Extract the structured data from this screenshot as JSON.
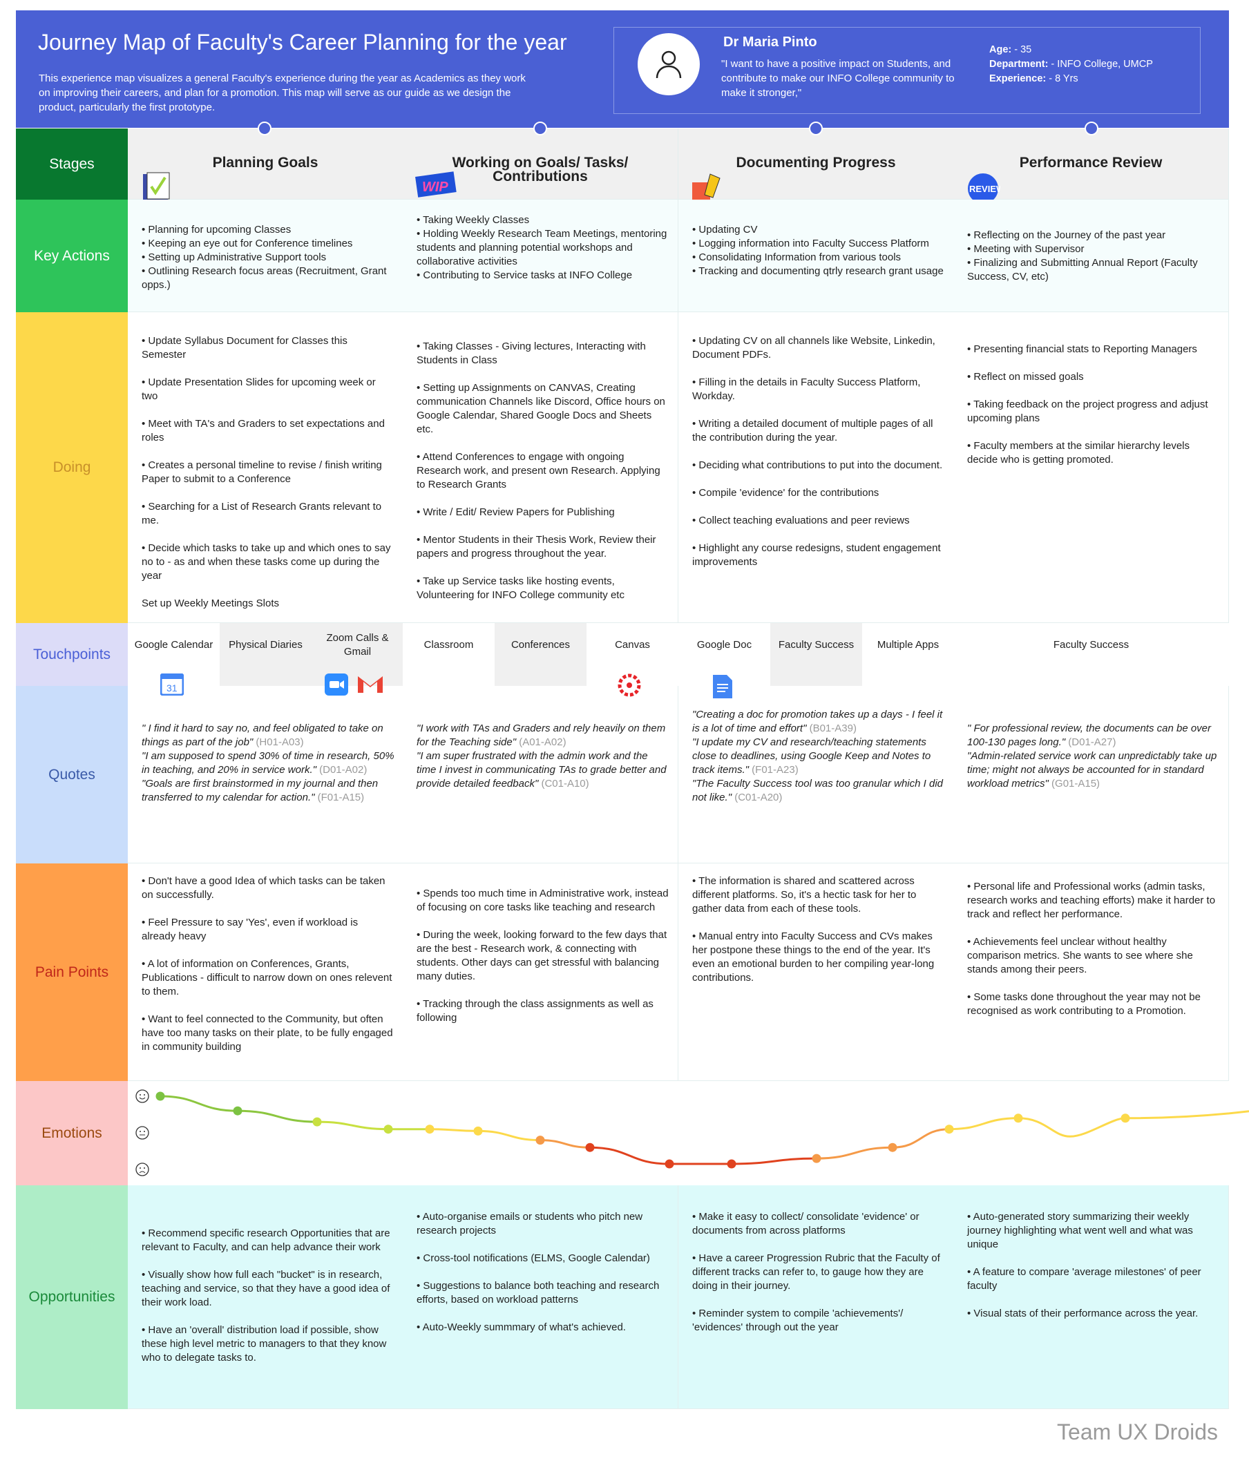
{
  "header": {
    "title": "Journey Map of Faculty's Career Planning for the year",
    "description": "This experience map visualizes a general Faculty's experience during the year as Academics as they work on improving their careers, and plan for a promotion. This map will serve as our guide as we design the product, particularly the first prototype.",
    "persona": {
      "name": "Dr Maria Pinto",
      "quote": "\"I want to have a positive impact on Students, and contribute to make our INFO College community to make it stronger,\"",
      "age_label": "Age:",
      "age": " - 35",
      "department_label": "Department:",
      "department": " - INFO College, UMCP",
      "experience_label": "Experience:",
      "experience": " - 8 Yrs"
    }
  },
  "row_labels": {
    "stages": "Stages",
    "key_actions": "Key Actions",
    "doing": "Doing",
    "touchpoints": "Touchpoints",
    "quotes": "Quotes",
    "pain_points": "Pain Points",
    "emotions": "Emotions",
    "opportunities": "Opportunities"
  },
  "colors": {
    "header": "#4a60d4",
    "stages": "#08782f",
    "key_actions": "#2ec45a",
    "doing": "#fdd84a",
    "touchpoints": "#dcdcf8",
    "quotes": "#c9ddfb",
    "pain_points": "#ff9f4a",
    "emotions": "#fcc7c7",
    "opportunities": "#aeedc7"
  },
  "stages": [
    {
      "title": "Planning Goals",
      "icon": "planned-notepad-icon",
      "icon_text": "PLANNED",
      "key_actions": [
        "• Planning for upcoming Classes",
        "• Keeping an eye out for Conference timelines",
        "• Setting up Administrative Support tools",
        "• Outlining Research focus areas (Recruitment, Grant opps.)"
      ],
      "doing": [
        "• Update Syllabus Document  for Classes this Semester",
        "• Update Presentation Slides for upcoming week or two",
        "• Meet with TA's and Graders to set expectations and roles",
        "• Creates a personal timeline to revise / finish writing Paper to submit to a Conference",
        "• Searching for a List of Research Grants relevant to me.",
        "• Decide which tasks to take up and which ones to say no to - as and when these tasks come up during the year",
        "Set up Weekly Meetings Slots"
      ],
      "touchpoints": [
        "Google Calendar",
        "Physical Diaries",
        "Zoom Calls & Gmail"
      ],
      "quotes": [
        {
          "text": "\" I find it hard to say no, and feel obligated to take on things as part of the job\"",
          "code": " (H01-A03)"
        },
        {
          "text": "\"I am supposed to spend 30% of time in research, 50% in teaching, and 20% in service work.\"",
          "code": "  (D01-A02)"
        },
        {
          "text": "\"Goals are first brainstormed in my journal and then transferred to my calendar for action.\"",
          "code": " (F01-A15)"
        }
      ],
      "pain_points": [
        "• Don't have a good Idea of which tasks can be taken on successfully.",
        "• Feel Pressure to say 'Yes', even if workload is already heavy",
        "• A lot of information on Conferences, Grants, Publications - difficult to narrow down on ones relevent to them.",
        "• Want to feel connected to the Community, but often have too many tasks on their plate, to be fully engaged in community building"
      ],
      "opportunities": [
        "• Recommend specific research Opportunities that are relevant to Faculty, and can help advance their work",
        "• Visually show how full each \"bucket\" is in research, teaching and service, so that they have a good idea of their work load.",
        "• Have an 'overall' distribution load if possible, show these high level metric to managers to that they know who to delegate tasks to."
      ]
    },
    {
      "title": "Working on Goals/ Tasks/ Contributions",
      "icon": "wip-icon",
      "icon_text": "WIP",
      "key_actions": [
        "• Taking Weekly Classes",
        "•  Holding Weekly Research Team Meetings, mentoring",
        "students and planning potential workshops and collaborative activities",
        "• Contributing to Service tasks at INFO College"
      ],
      "doing": [
        "• Taking Classes - Giving lectures, Interacting with Students in Class",
        "• Setting up Assignments on CANVAS, Creating communication Channels like Discord,  Office hours on Google Calendar, Shared Google Docs and Sheets etc.",
        "• Attend Conferences to engage with ongoing Research work, and present own Research. Applying to Research Grants",
        "• Write / Edit/ Review Papers for Publishing",
        "• Mentor Students in their Thesis Work, Review their papers and progress throughout the year.",
        "• Take up Service tasks like hosting events, Volunteering for INFO College community etc"
      ],
      "touchpoints": [
        "Classroom",
        "Conferences",
        "Canvas"
      ],
      "quotes": [
        {
          "text": "\"I work with TAs and Graders and rely heavily on them for the Teaching side\"",
          "code": " (A01-A02)"
        },
        {
          "text": "\"I am super frustrated with the admin work and the time I invest in communicating TAs to grade better and provide detailed feedback\"",
          "code": " (C01-A10)"
        }
      ],
      "pain_points": [
        "• Spends too much time in Administrative work, instead of focusing on core tasks like teaching and research",
        "• During the week, looking forward to the few days that are the best - Research work, & connecting with students. Other days can get stressful with balancing many duties.",
        "•  Tracking through the class assignments as well as following"
      ],
      "opportunities": [
        "• Auto-organise emails or students who pitch new research projects",
        "• Cross-tool notifications (ELMS, Google Calendar)",
        "•  Suggestions to balance both teaching and research efforts, based on workload patterns",
        "•  Auto-Weekly summmary of what's achieved."
      ]
    },
    {
      "title": "Documenting Progress",
      "icon": "pencil-icon",
      "key_actions": [
        "• Updating CV",
        "• Logging information into Faculty Success Platform",
        "• Consolidating Information from various tools",
        "• Tracking and documenting qtrly research grant usage"
      ],
      "doing": [
        "• Updating CV on all channels like Website, Linkedin, Document PDFs.",
        "• Filling in the details in Faculty Success Platform, Workday.",
        "• Writing a detailed document of multiple pages of all the contribution during the year.",
        "• Deciding what contributions to put into the document.",
        "• Compile 'evidence' for the contributions",
        "• Collect teaching evaluations and peer reviews",
        "• Highlight any course redesigns, student engagement improvements"
      ],
      "touchpoints": [
        "Google Doc",
        "Faculty Success",
        "Multiple Apps"
      ],
      "quotes": [
        {
          "text": "\"Creating a doc for promotion takes up a days - I feel it is a lot of time and effort\"",
          "code": " (B01-A39)"
        },
        {
          "text": "\"I update my CV and research/teaching statements close to deadlines, using Google Keep and Notes to track items.\"",
          "code": " (F01-A23)"
        },
        {
          "text": "\"The Faculty Success tool was too granular which I did not like.\"",
          "code": " (C01-A20)"
        }
      ],
      "pain_points": [
        "•  The information is shared and scattered across different platforms. So, it's a hectic task for her to gather data from each of these tools.",
        "•  Manual entry into Faculty Success and CVs makes her postpone these things to the end of the year. It's even an emotional burden to her compiling year-long contributions."
      ],
      "opportunities": [
        "• Make it easy to collect/ consolidate 'evidence' or documents from across platforms",
        "• Have a career Progression Rubric that the Faculty of different tracks can refer to, to gauge how they are doing in their journey.",
        "• Reminder system to compile 'achievements'/ 'evidences' through out the year"
      ]
    },
    {
      "title": "Performance Review",
      "icon": "review-badge-icon",
      "icon_text": "REVIEW",
      "key_actions": [
        "• Reflecting on the Journey of the past year",
        "• Meeting with Supervisor",
        "• Finalizing and Submitting Annual Report (Faculty Success, CV, etc)"
      ],
      "doing": [
        "•  Presenting financial stats to Reporting Managers",
        "•  Reflect on missed goals",
        "•  Taking feedback on the project progress and adjust upcoming plans",
        "• Faculty members at the similar hierarchy levels decide who is getting promoted."
      ],
      "touchpoints": [
        "Faculty Success"
      ],
      "quotes": [
        {
          "text": "\" For professional review, the documents can be over 100-130 pages long.\"",
          "code": " (D01-A27)"
        },
        {
          "text": "\"Admin-related service work can unpredictably take up time; might not always be accounted for in standard workload metrics\"",
          "code": " (G01-A15)"
        }
      ],
      "pain_points": [
        "•  Personal life and Professional works (admin tasks, research works and teaching efforts) make it harder to track and reflect her performance.",
        "•  Achievements feel unclear without healthy comparison metrics. She wants to see where she stands among their peers.",
        "• Some tasks done throughout the year may not be recognised as work contributing to a Promotion."
      ],
      "opportunities": [
        "• Auto-generated story summarizing their weekly journey highlighting what went well and what was unique",
        "•  A feature to compare 'average milestones' of peer faculty",
        "•  Visual stats of their performance across the year."
      ]
    }
  ],
  "emotions": {
    "scale": [
      "happy",
      "neutral",
      "sad"
    ],
    "points": [
      {
        "level": 1.0,
        "color": "#7cc242"
      },
      {
        "level": 0.6,
        "color": "#7cc242"
      },
      {
        "level": 0.3,
        "color": "#c8e040"
      },
      {
        "level": 0.1,
        "color": "#c8e040"
      },
      {
        "level": 0.1,
        "color": "#fcd94a"
      },
      {
        "level": 0.05,
        "color": "#fcd94a"
      },
      {
        "level": -0.2,
        "color": "#f59a48"
      },
      {
        "level": -0.4,
        "color": "#e0421e"
      },
      {
        "level": -0.85,
        "color": "#e0421e"
      },
      {
        "level": -0.85,
        "color": "#e0421e"
      },
      {
        "level": -0.7,
        "color": "#f59a48"
      },
      {
        "level": -0.4,
        "color": "#f59a48"
      },
      {
        "level": 0.1,
        "color": "#fcd94a"
      },
      {
        "level": 0.4,
        "color": "#fcd94a"
      },
      {
        "level": 0.4,
        "color": "#fcd94a"
      }
    ]
  },
  "footer": "Team UX Droids"
}
